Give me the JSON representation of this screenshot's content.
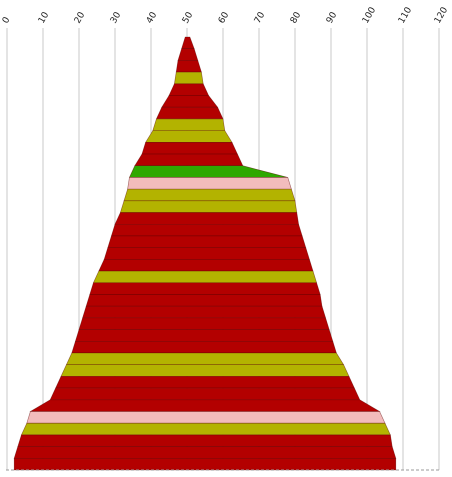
{
  "chart_data": {
    "type": "area",
    "orientation": "vertical-pyramid",
    "x_ticks": [
      0,
      10,
      20,
      30,
      40,
      50,
      60,
      70,
      80,
      90,
      100,
      110,
      120
    ],
    "xlim": [
      0,
      120
    ],
    "grid": true,
    "colors": {
      "red": "#b30000",
      "olive": "#b3b300",
      "green": "#2ea800",
      "pink": "#f2bcbc"
    },
    "bands": [
      {
        "left": 49.5,
        "right": 50.8,
        "color": "red"
      },
      {
        "left": 48.5,
        "right": 52.0,
        "color": "red"
      },
      {
        "left": 47.5,
        "right": 53.0,
        "color": "red"
      },
      {
        "left": 47.0,
        "right": 54.0,
        "color": "olive"
      },
      {
        "left": 46.5,
        "right": 54.5,
        "color": "red"
      },
      {
        "left": 45.0,
        "right": 56.0,
        "color": "red"
      },
      {
        "left": 43.0,
        "right": 58.5,
        "color": "red"
      },
      {
        "left": 41.5,
        "right": 60.0,
        "color": "olive"
      },
      {
        "left": 40.5,
        "right": 60.5,
        "color": "olive"
      },
      {
        "left": 38.5,
        "right": 62.5,
        "color": "red"
      },
      {
        "left": 37.5,
        "right": 64.0,
        "color": "red"
      },
      {
        "left": 35.5,
        "right": 65.5,
        "color": "green"
      },
      {
        "left": 34.0,
        "right": 78.0,
        "color": "pink"
      },
      {
        "left": 33.5,
        "right": 79.0,
        "color": "olive"
      },
      {
        "left": 32.5,
        "right": 80.0,
        "color": "olive"
      },
      {
        "left": 31.5,
        "right": 80.5,
        "color": "red"
      },
      {
        "left": 30.0,
        "right": 81.0,
        "color": "red"
      },
      {
        "left": 29.0,
        "right": 82.0,
        "color": "red"
      },
      {
        "left": 28.0,
        "right": 83.0,
        "color": "red"
      },
      {
        "left": 27.0,
        "right": 84.0,
        "color": "red"
      },
      {
        "left": 25.5,
        "right": 85.0,
        "color": "olive"
      },
      {
        "left": 24.0,
        "right": 86.0,
        "color": "red"
      },
      {
        "left": 23.0,
        "right": 87.0,
        "color": "red"
      },
      {
        "left": 22.0,
        "right": 87.5,
        "color": "red"
      },
      {
        "left": 21.0,
        "right": 88.5,
        "color": "red"
      },
      {
        "left": 20.0,
        "right": 89.5,
        "color": "red"
      },
      {
        "left": 19.0,
        "right": 90.5,
        "color": "red"
      },
      {
        "left": 18.0,
        "right": 91.5,
        "color": "olive"
      },
      {
        "left": 16.5,
        "right": 93.5,
        "color": "olive"
      },
      {
        "left": 15.0,
        "right": 95.0,
        "color": "red"
      },
      {
        "left": 13.5,
        "right": 96.5,
        "color": "red"
      },
      {
        "left": 12.0,
        "right": 98.0,
        "color": "red"
      },
      {
        "left": 6.5,
        "right": 103.5,
        "color": "pink"
      },
      {
        "left": 5.5,
        "right": 105.0,
        "color": "olive"
      },
      {
        "left": 4.0,
        "right": 106.5,
        "color": "red"
      },
      {
        "left": 3.0,
        "right": 107.0,
        "color": "red"
      },
      {
        "left": 2.0,
        "right": 108.0,
        "color": "red"
      }
    ]
  }
}
